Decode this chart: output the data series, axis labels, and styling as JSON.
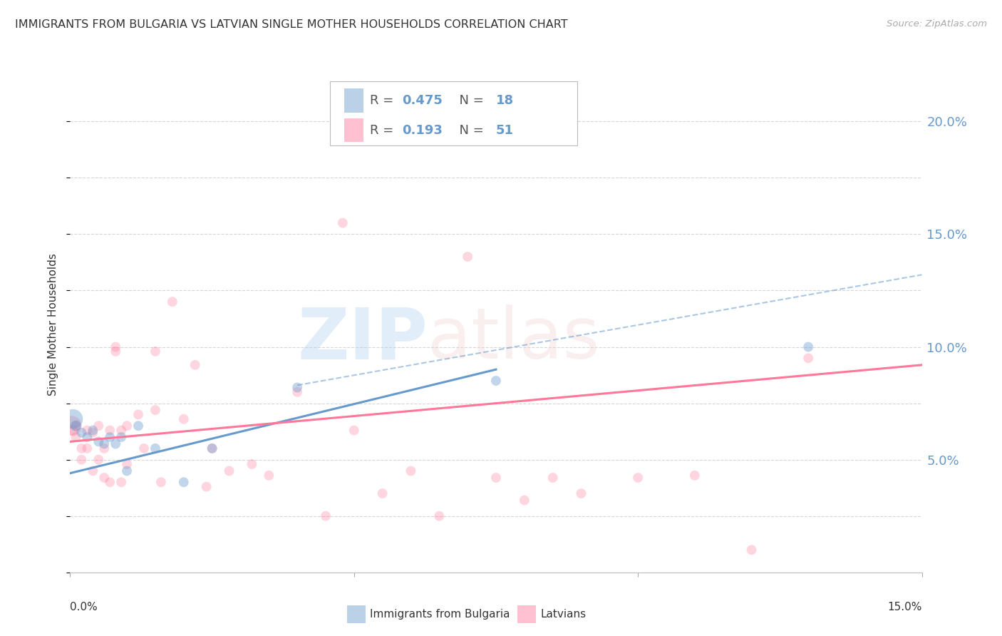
{
  "title": "IMMIGRANTS FROM BULGARIA VS LATVIAN SINGLE MOTHER HOUSEHOLDS CORRELATION CHART",
  "source": "Source: ZipAtlas.com",
  "ylabel": "Single Mother Households",
  "right_yticks": [
    "20.0%",
    "15.0%",
    "10.0%",
    "5.0%"
  ],
  "right_ytick_vals": [
    0.2,
    0.15,
    0.1,
    0.05
  ],
  "xlim": [
    0.0,
    0.15
  ],
  "ylim": [
    0.0,
    0.22
  ],
  "blue_color": "#6699CC",
  "pink_color": "#FF7799",
  "watermark_zip": "ZIP",
  "watermark_atlas": "atlas",
  "blue_scatter_x": [
    0.0005,
    0.001,
    0.002,
    0.003,
    0.004,
    0.005,
    0.006,
    0.007,
    0.008,
    0.009,
    0.01,
    0.012,
    0.015,
    0.02,
    0.025,
    0.04,
    0.075,
    0.13
  ],
  "blue_scatter_y": [
    0.068,
    0.065,
    0.062,
    0.06,
    0.063,
    0.058,
    0.057,
    0.06,
    0.057,
    0.06,
    0.045,
    0.065,
    0.055,
    0.04,
    0.055,
    0.082,
    0.085,
    0.1
  ],
  "blue_scatter_size": [
    400,
    120,
    100,
    100,
    100,
    100,
    100,
    100,
    100,
    100,
    100,
    100,
    100,
    100,
    100,
    100,
    100,
    100
  ],
  "pink_scatter_x": [
    0.0003,
    0.0005,
    0.001,
    0.001,
    0.002,
    0.002,
    0.003,
    0.003,
    0.004,
    0.004,
    0.005,
    0.005,
    0.006,
    0.006,
    0.007,
    0.007,
    0.008,
    0.008,
    0.009,
    0.009,
    0.01,
    0.01,
    0.012,
    0.013,
    0.015,
    0.015,
    0.016,
    0.018,
    0.02,
    0.022,
    0.024,
    0.025,
    0.028,
    0.032,
    0.035,
    0.04,
    0.045,
    0.048,
    0.05,
    0.055,
    0.06,
    0.065,
    0.07,
    0.075,
    0.08,
    0.085,
    0.09,
    0.1,
    0.11,
    0.12,
    0.13
  ],
  "pink_scatter_y": [
    0.065,
    0.063,
    0.065,
    0.06,
    0.055,
    0.05,
    0.063,
    0.055,
    0.062,
    0.045,
    0.065,
    0.05,
    0.042,
    0.055,
    0.063,
    0.04,
    0.1,
    0.098,
    0.063,
    0.04,
    0.065,
    0.048,
    0.07,
    0.055,
    0.098,
    0.072,
    0.04,
    0.12,
    0.068,
    0.092,
    0.038,
    0.055,
    0.045,
    0.048,
    0.043,
    0.08,
    0.025,
    0.155,
    0.063,
    0.035,
    0.045,
    0.025,
    0.14,
    0.042,
    0.032,
    0.042,
    0.035,
    0.042,
    0.043,
    0.01,
    0.095
  ],
  "pink_scatter_size": [
    400,
    120,
    100,
    100,
    100,
    100,
    100,
    100,
    100,
    100,
    100,
    100,
    100,
    100,
    100,
    100,
    100,
    100,
    100,
    100,
    100,
    100,
    100,
    100,
    100,
    100,
    100,
    100,
    100,
    100,
    100,
    100,
    100,
    100,
    100,
    100,
    100,
    100,
    100,
    100,
    100,
    100,
    100,
    100,
    100,
    100,
    100,
    100,
    100,
    100,
    100
  ],
  "blue_line_x": [
    0.0,
    0.075
  ],
  "blue_line_y": [
    0.044,
    0.09
  ],
  "pink_line_x": [
    0.0,
    0.15
  ],
  "pink_line_y": [
    0.058,
    0.092
  ],
  "dashed_line_x": [
    0.04,
    0.15
  ],
  "dashed_line_y": [
    0.083,
    0.132
  ],
  "title_color": "#333333",
  "axis_color": "#6699CC",
  "grid_color": "#CCCCCC",
  "bg_color": "#FFFFFF"
}
